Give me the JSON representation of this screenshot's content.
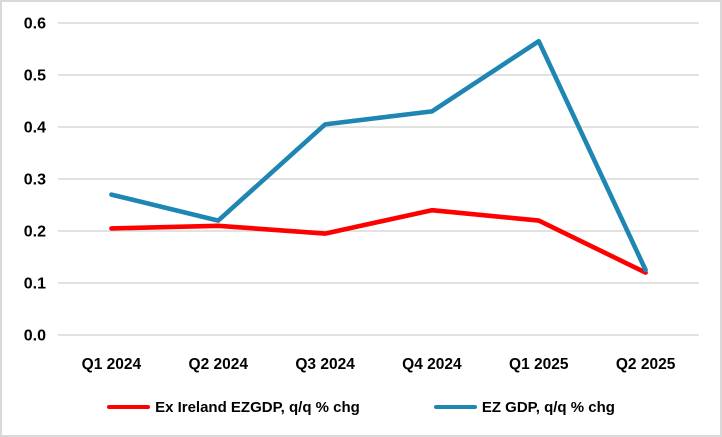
{
  "chart_data": {
    "type": "line",
    "categories": [
      "Q1 2024",
      "Q2 2024",
      "Q3 2024",
      "Q4 2024",
      "Q1 2025",
      "Q2 2025"
    ],
    "yticks": [
      "0.0",
      "0.1",
      "0.2",
      "0.3",
      "0.4",
      "0.5",
      "0.6"
    ],
    "ylim": [
      0,
      0.6
    ],
    "grid": true,
    "legend_position": "bottom",
    "series": [
      {
        "name": "Ex Ireland EZGDP, q/q % chg",
        "color": "#ff0000",
        "values": [
          0.205,
          0.21,
          0.195,
          0.24,
          0.22,
          0.12
        ]
      },
      {
        "name": "EZ GDP, q/q % chg",
        "color": "#1f86b4",
        "values": [
          0.27,
          0.22,
          0.405,
          0.43,
          0.565,
          0.125
        ]
      }
    ],
    "colors": {
      "gridline": "#d9d9d9",
      "frame_border": "#d9d9d9",
      "text": "#000000",
      "background": "#ffffff"
    }
  }
}
